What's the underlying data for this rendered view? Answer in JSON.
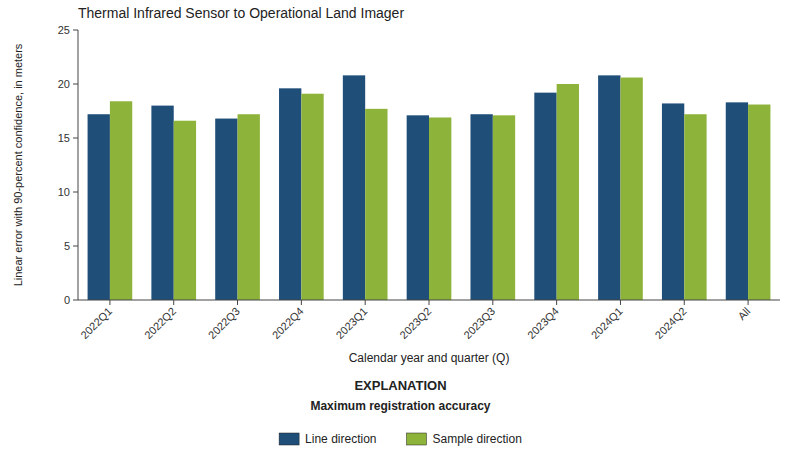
{
  "chart_data": {
    "type": "bar",
    "title": "Thermal Infrared Sensor to Operational Land Imager",
    "xlabel": "Calendar year and quarter (Q)",
    "ylabel": "Linear error with 90-percent confidence, in meters",
    "categories": [
      "2022Q1",
      "2022Q2",
      "2022Q3",
      "2022Q4",
      "2023Q1",
      "2023Q2",
      "2023Q3",
      "2023Q4",
      "2024Q1",
      "2024Q2",
      "All"
    ],
    "series": [
      {
        "name": "Line direction",
        "color": "#1F4E79",
        "values": [
          17.2,
          18.0,
          16.8,
          19.6,
          20.8,
          17.1,
          17.2,
          19.2,
          20.8,
          18.2,
          18.3
        ]
      },
      {
        "name": "Sample direction",
        "color": "#8DB33A",
        "values": [
          18.4,
          16.6,
          17.2,
          19.1,
          17.7,
          16.9,
          17.1,
          20.0,
          20.6,
          17.2,
          18.1
        ]
      }
    ],
    "ylim": [
      0,
      25
    ],
    "yticks": [
      0,
      5,
      10,
      15,
      20,
      25
    ],
    "annotations": [
      "EXPLANATION",
      "Maximum registration accuracy"
    ],
    "legend": "bottom",
    "grid": false
  }
}
